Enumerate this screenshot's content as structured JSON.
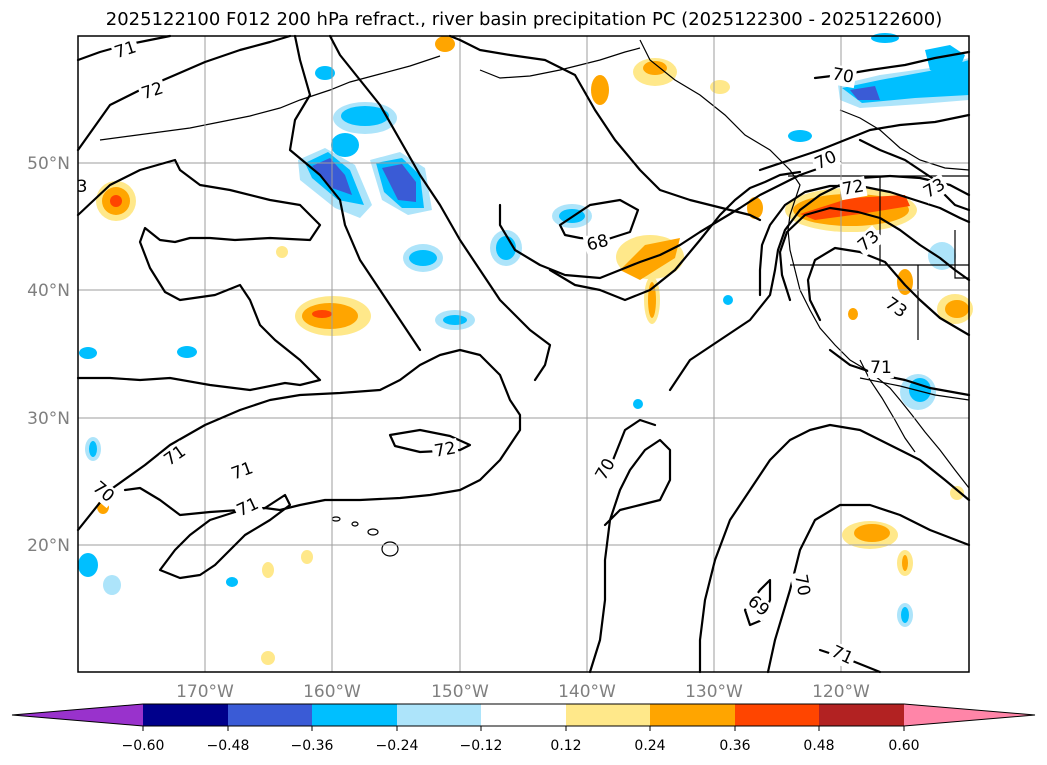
{
  "title": "2025122100 F012 200 hPa refract., river basin precipitation PC (2025122300 - 2025122600)",
  "map": {
    "lon_ticks": [
      "170°W",
      "160°W",
      "150°W",
      "140°W",
      "130°W",
      "120°W"
    ],
    "lat_ticks": [
      "50°N",
      "40°N",
      "30°N",
      "20°N"
    ],
    "gridlines": true
  },
  "contour_labels": [
    {
      "text": "71"
    },
    {
      "text": "72"
    },
    {
      "text": "70"
    },
    {
      "text": "68"
    },
    {
      "text": "70"
    },
    {
      "text": "72"
    },
    {
      "text": "73"
    },
    {
      "text": "73"
    },
    {
      "text": "73"
    },
    {
      "text": "71"
    },
    {
      "text": "72"
    },
    {
      "text": "71"
    },
    {
      "text": "71"
    },
    {
      "text": "71"
    },
    {
      "text": "70"
    },
    {
      "text": "70"
    },
    {
      "text": "70"
    },
    {
      "text": "69"
    },
    {
      "text": "71"
    },
    {
      "text": "3"
    }
  ],
  "colorbar": {
    "ticks": [
      "−0.60",
      "−0.48",
      "−0.36",
      "−0.24",
      "−0.12",
      "0.12",
      "0.24",
      "0.36",
      "0.48",
      "0.60"
    ],
    "colors": [
      "#9932cc",
      "#00008b",
      "#3a5bd6",
      "#00bfff",
      "#ade4fa",
      "#ffffff",
      "#ffe88a",
      "#ffa500",
      "#ff4500",
      "#b22222",
      "#ff85a8"
    ]
  },
  "colors": {
    "pos_light": "#ffe88a",
    "pos_mid": "#ffa500",
    "pos_strong": "#ff4500",
    "neg_light": "#ade4fa",
    "neg_mid": "#00bfff",
    "neg_strong": "#3a5bd6"
  }
}
